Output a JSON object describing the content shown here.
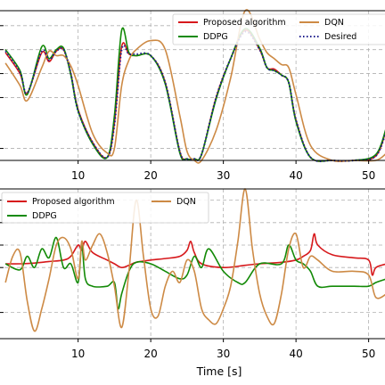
{
  "chart_data": [
    {
      "type": "line",
      "title": "",
      "xlabel": "",
      "ylabel": "",
      "xlim": [
        -1,
        52.5
      ],
      "ylim": [
        0,
        1
      ],
      "xticks": [
        10,
        20,
        30,
        40,
        50
      ],
      "grid": true,
      "legend_placement": "top-right",
      "legend_columns": 2,
      "series": [
        {
          "name": "Proposed algorithm",
          "color": "#d7191c",
          "dash": "solid",
          "x": [
            0,
            2,
            3,
            5,
            6,
            7,
            8,
            9,
            10,
            12,
            14,
            15,
            16,
            17,
            18,
            20,
            22,
            24,
            25,
            26,
            27,
            29,
            31,
            33,
            35,
            36,
            37,
            38,
            39,
            40,
            42,
            45,
            48,
            51,
            52.5
          ],
          "y": [
            0.72,
            0.58,
            0.45,
            0.72,
            0.66,
            0.73,
            0.74,
            0.58,
            0.34,
            0.12,
            0.02,
            0.25,
            0.76,
            0.71,
            0.7,
            0.7,
            0.52,
            0.06,
            0.01,
            0.01,
            0.04,
            0.42,
            0.68,
            0.87,
            0.74,
            0.62,
            0.61,
            0.57,
            0.52,
            0.27,
            0.02,
            0.0,
            0.0,
            0.03,
            0.22
          ]
        },
        {
          "name": "DDPG",
          "color": "#138a07",
          "dash": "solid",
          "x": [
            0,
            2,
            3,
            5,
            6,
            7,
            8,
            9,
            10,
            12,
            14,
            15,
            16,
            17,
            18,
            20,
            22,
            24,
            25,
            26,
            27,
            29,
            31,
            33,
            35,
            36,
            37,
            38,
            39,
            40,
            42,
            45,
            48,
            51,
            52.5
          ],
          "y": [
            0.74,
            0.6,
            0.44,
            0.76,
            0.68,
            0.74,
            0.75,
            0.57,
            0.33,
            0.11,
            0.02,
            0.3,
            0.87,
            0.72,
            0.7,
            0.7,
            0.51,
            0.05,
            0.01,
            0.01,
            0.04,
            0.41,
            0.68,
            0.88,
            0.75,
            0.62,
            0.6,
            0.57,
            0.52,
            0.26,
            0.02,
            0.0,
            0.0,
            0.04,
            0.23
          ]
        },
        {
          "name": "DQN",
          "color": "#cd8a45",
          "dash": "solid",
          "x": [
            0,
            2,
            3,
            5,
            6,
            7,
            8,
            9,
            10,
            12,
            14,
            15,
            16,
            17,
            18,
            20,
            22,
            24,
            25,
            26,
            27,
            29,
            31,
            33,
            35,
            36,
            37,
            38,
            39,
            40,
            42,
            45,
            48,
            51,
            52.5
          ],
          "y": [
            0.65,
            0.5,
            0.4,
            0.62,
            0.73,
            0.7,
            0.7,
            0.63,
            0.5,
            0.18,
            0.05,
            0.08,
            0.5,
            0.67,
            0.74,
            0.8,
            0.74,
            0.3,
            0.06,
            0.0,
            0.0,
            0.2,
            0.55,
            1.0,
            0.81,
            0.72,
            0.68,
            0.64,
            0.62,
            0.44,
            0.1,
            0.0,
            0.0,
            0.0,
            0.05
          ]
        },
        {
          "name": "Desired",
          "color": "#1a1a8c",
          "dash": "dotted",
          "x": [
            0,
            2,
            3,
            5,
            6,
            7,
            8,
            9,
            10,
            12,
            14,
            15,
            16,
            17,
            18,
            20,
            22,
            24,
            25,
            26,
            27,
            29,
            31,
            33,
            35,
            36,
            37,
            38,
            39,
            40,
            42,
            45,
            48,
            51,
            52.5
          ],
          "y": [
            0.73,
            0.59,
            0.45,
            0.73,
            0.67,
            0.73,
            0.74,
            0.58,
            0.33,
            0.12,
            0.02,
            0.24,
            0.74,
            0.71,
            0.71,
            0.7,
            0.52,
            0.06,
            0.01,
            0.01,
            0.04,
            0.42,
            0.68,
            0.86,
            0.74,
            0.62,
            0.6,
            0.57,
            0.52,
            0.27,
            0.02,
            0.0,
            0.0,
            0.03,
            0.21
          ]
        }
      ]
    },
    {
      "type": "line",
      "title": "",
      "xlabel": "Time [s]",
      "ylabel": "",
      "xlim": [
        -1,
        52.5
      ],
      "ylim": [
        -1,
        1
      ],
      "xticks": [
        10,
        20,
        30,
        40,
        50
      ],
      "grid": true,
      "legend_placement": "top-left",
      "legend_columns": 2,
      "series": [
        {
          "name": "Proposed algorithm",
          "color": "#d7191c",
          "dash": "solid",
          "x": [
            0,
            2,
            4,
            6,
            8,
            9,
            10,
            10.5,
            11,
            12,
            14,
            15,
            16,
            17,
            18,
            20,
            22,
            24,
            25,
            25.5,
            26,
            27,
            30,
            33,
            35,
            38,
            40,
            41,
            42,
            42.5,
            43,
            45,
            48,
            50,
            50.5,
            51,
            52.5
          ],
          "y": [
            0.0,
            0.0,
            0.01,
            0.03,
            0.05,
            0.1,
            0.25,
            0.18,
            0.3,
            0.15,
            0.05,
            0.0,
            -0.05,
            -0.02,
            0.02,
            0.05,
            0.07,
            0.1,
            0.18,
            0.3,
            0.15,
            0.0,
            -0.05,
            -0.02,
            0.0,
            0.02,
            0.05,
            0.1,
            0.18,
            0.4,
            0.25,
            0.12,
            0.08,
            0.05,
            -0.15,
            -0.05,
            0.0
          ]
        },
        {
          "name": "DDPG",
          "color": "#138a07",
          "dash": "solid",
          "x": [
            0,
            2,
            3,
            4,
            5,
            6,
            7,
            8,
            9,
            10,
            10.5,
            11,
            12,
            14,
            15,
            15.5,
            16,
            17,
            18,
            20,
            22,
            24,
            25,
            26,
            27,
            28,
            30,
            32,
            33,
            35,
            38,
            39,
            40,
            41,
            42,
            43,
            45,
            48,
            50,
            51,
            52.5
          ],
          "y": [
            0.0,
            -0.08,
            0.1,
            -0.05,
            0.2,
            0.08,
            0.35,
            -0.05,
            0.0,
            -0.25,
            0.25,
            -0.2,
            -0.3,
            -0.3,
            -0.25,
            -0.6,
            -0.4,
            -0.1,
            0.02,
            0.0,
            -0.1,
            -0.2,
            -0.15,
            0.1,
            -0.05,
            0.2,
            -0.1,
            -0.25,
            -0.25,
            0.0,
            0.0,
            0.25,
            0.05,
            0.0,
            -0.1,
            -0.3,
            -0.3,
            -0.3,
            -0.3,
            -0.25,
            -0.2
          ]
        },
        {
          "name": "DQN",
          "color": "#cd8a45",
          "dash": "solid",
          "x": [
            0,
            1,
            2,
            3,
            4,
            5,
            6,
            7,
            8,
            9,
            10,
            10.5,
            11,
            12,
            13,
            14,
            15,
            16,
            17,
            18,
            19,
            20,
            21,
            22,
            23,
            24,
            25,
            26,
            27,
            28,
            29,
            30,
            31,
            32,
            33,
            34,
            35,
            36,
            37,
            38,
            39,
            40,
            41,
            42,
            43,
            45,
            48,
            50,
            51,
            52.5
          ],
          "y": [
            -0.25,
            0.1,
            0.15,
            -0.5,
            -0.9,
            -0.6,
            -0.2,
            0.25,
            0.35,
            0.2,
            -0.2,
            0.3,
            0.05,
            0.25,
            0.4,
            0.15,
            -0.3,
            -0.85,
            -0.1,
            0.85,
            0.1,
            -0.6,
            -0.7,
            -0.3,
            -0.1,
            -0.25,
            0.05,
            -0.1,
            -0.6,
            -0.75,
            -0.8,
            -0.6,
            -0.3,
            0.3,
            1.0,
            0.2,
            -0.4,
            -0.7,
            -0.8,
            -0.4,
            0.2,
            0.4,
            -0.05,
            0.1,
            0.05,
            -0.1,
            -0.1,
            -0.15,
            -0.45,
            -0.4
          ]
        }
      ]
    }
  ],
  "axes": {
    "bottom_xlabel": "Time [s]",
    "x_tick_labels": [
      "10",
      "20",
      "30",
      "40",
      "50"
    ]
  },
  "legends": {
    "top": [
      "Proposed algorithm",
      "DDPG",
      "DQN",
      "Desired"
    ],
    "bottom": [
      "Proposed algorithm",
      "DDPG",
      "DQN"
    ]
  }
}
